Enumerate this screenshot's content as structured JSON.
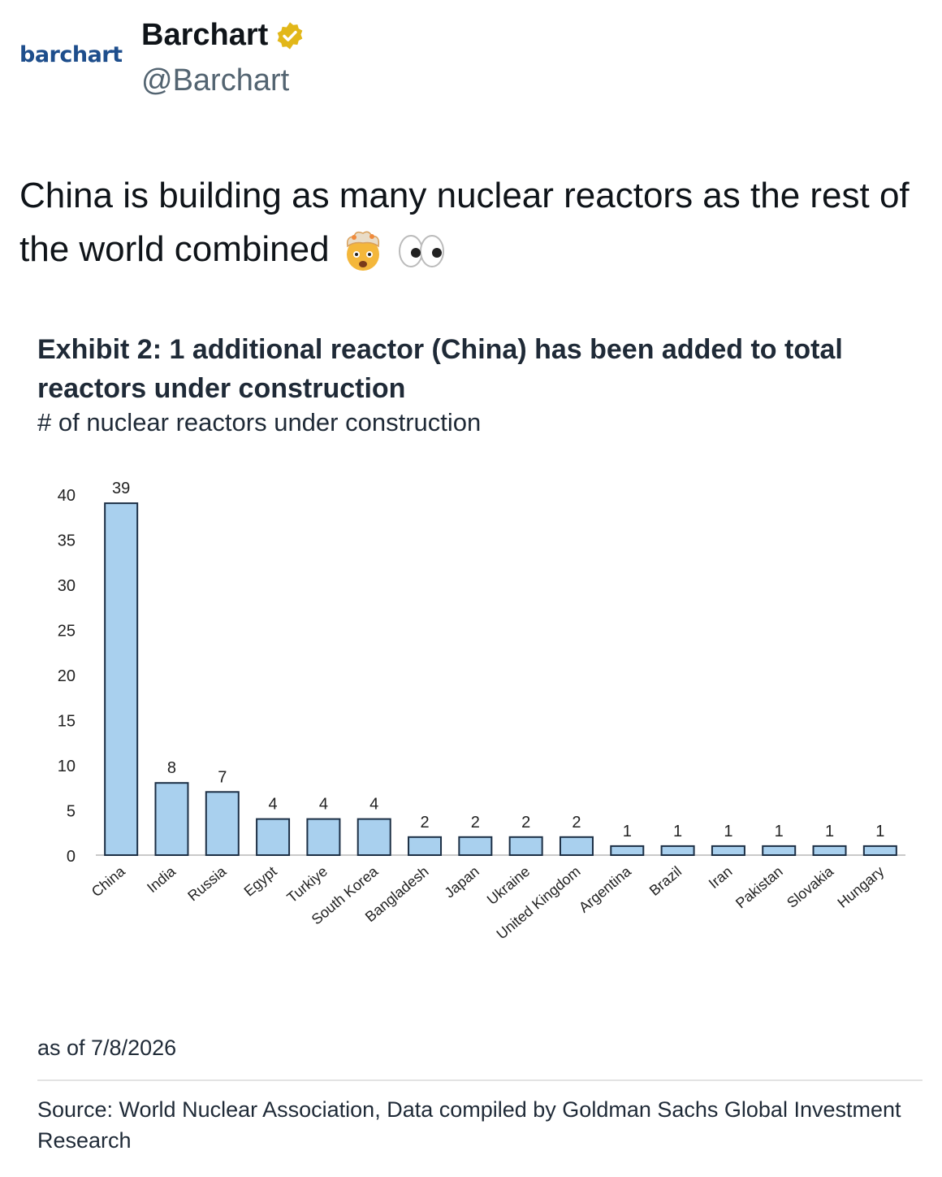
{
  "tweet": {
    "logo_text": "barchart",
    "display_name": "Barchart",
    "handle": "@Barchart",
    "text": "China is building as many nuclear reactors as the rest of the world combined",
    "emojis": [
      "exploding-head-emoji",
      "eyes-emoji"
    ]
  },
  "exhibit": {
    "title": "Exhibit 2: 1 additional reactor (China) has been added to total reactors under construction",
    "subtitle": "# of nuclear reactors under construction",
    "as_of": "as of 7/8/2026",
    "source": "Source: World Nuclear Association, Data compiled by Goldman Sachs Global Investment Research"
  },
  "colors": {
    "bar_fill": "#a9d0ee",
    "bar_stroke": "#1c2f45",
    "verified_badge": "#e2b719"
  },
  "chart_data": {
    "type": "bar",
    "categories": [
      "China",
      "India",
      "Russia",
      "Egypt",
      "Turkiye",
      "South Korea",
      "Bangladesh",
      "Japan",
      "Ukraine",
      "United Kingdom",
      "Argentina",
      "Brazil",
      "Iran",
      "Pakistan",
      "Slovakia",
      "Hungary"
    ],
    "values": [
      39,
      8,
      7,
      4,
      4,
      4,
      2,
      2,
      2,
      2,
      1,
      1,
      1,
      1,
      1,
      1
    ],
    "yticks": [
      0,
      5,
      10,
      15,
      20,
      25,
      30,
      35,
      40
    ],
    "ylim": [
      0,
      40
    ],
    "grid": false,
    "data_labels": true
  }
}
